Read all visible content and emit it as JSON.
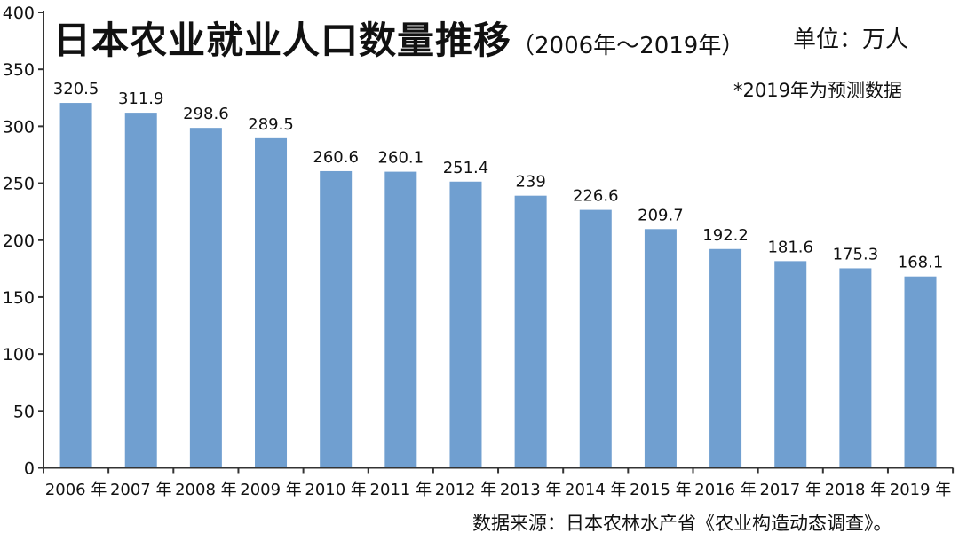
{
  "chart_data": {
    "type": "bar",
    "title": "日本农业就业人口数量推移",
    "subtitle": "（2006年～2019年）",
    "unit_label": "单位：万人",
    "note": "*2019年为预测数据",
    "source": "数据来源：日本农林水产省《农业构造动态调查》。",
    "xlabel": "",
    "ylabel": "",
    "ylim": [
      0,
      400
    ],
    "yticks": [
      0,
      50,
      100,
      150,
      200,
      250,
      300,
      350,
      400
    ],
    "categories": [
      "2006 年",
      "2007 年",
      "2008 年",
      "2009 年",
      "2010 年",
      "2011 年",
      "2012 年",
      "2013 年",
      "2014 年",
      "2015 年",
      "2016 年",
      "2017 年",
      "2018 年",
      "2019 年"
    ],
    "values": [
      320.5,
      311.9,
      298.6,
      289.5,
      260.6,
      260.1,
      251.4,
      239,
      226.6,
      209.7,
      192.2,
      181.6,
      175.3,
      168.1
    ],
    "data_labels": [
      "320.5",
      "311.9",
      "298.6",
      "289.5",
      "260.6",
      "260.1",
      "251.4",
      "239",
      "226.6",
      "209.7",
      "192.2",
      "181.6",
      "175.3",
      "168.1"
    ],
    "grid": false,
    "bar_color": "#709fd0",
    "axis_color": "#333333"
  }
}
